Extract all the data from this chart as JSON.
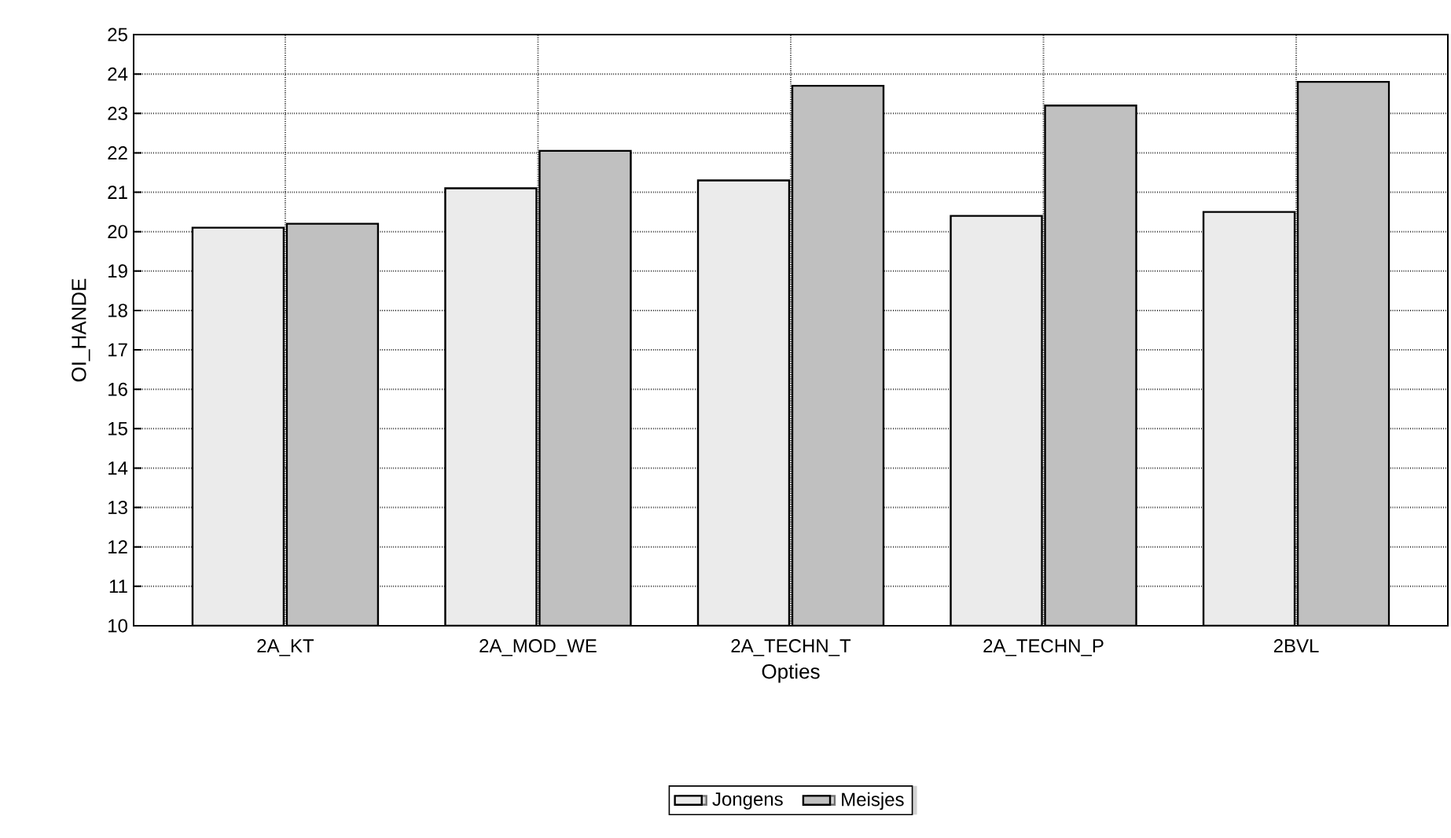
{
  "chart_data": {
    "type": "bar",
    "xlabel": "Opties",
    "ylabel": "OI_HANDE",
    "categories": [
      "2A_KT",
      "2A_MOD_WE",
      "2A_TECHN_T",
      "2A_TECHN_P",
      "2BVL"
    ],
    "series": [
      {
        "name": "Jongens",
        "color": "#ebebeb",
        "values": [
          20.1,
          21.1,
          21.3,
          20.4,
          20.5
        ]
      },
      {
        "name": "Meisjes",
        "color": "#c0c0c0",
        "values": [
          20.2,
          22.05,
          23.7,
          23.2,
          23.8
        ]
      }
    ],
    "ylim": [
      10,
      25
    ],
    "yticks": [
      10,
      11,
      12,
      13,
      14,
      15,
      16,
      17,
      18,
      19,
      20,
      21,
      22,
      23,
      24,
      25
    ],
    "grid": true,
    "legend": "bottom"
  }
}
